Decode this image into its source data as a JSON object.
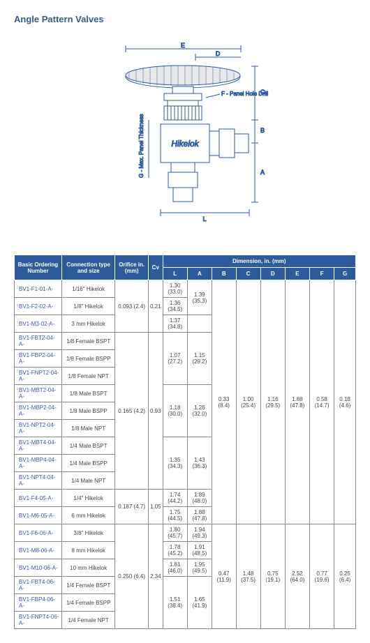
{
  "page_title": "Angle Pattern Valves",
  "diagram": {
    "brand_label": "Hikelok",
    "label_E": "E",
    "label_D": "D",
    "label_C": "C",
    "label_B": "B",
    "label_A": "A",
    "label_L": "L",
    "label_F": "F - Panel Hole Drill",
    "label_G": "G - Max. Panel Thickness",
    "stroke_color": "#2e5a9e",
    "fill_color": "#ffffff"
  },
  "table": {
    "header_bg": "#2e5a9e",
    "header_fg": "#ffffff",
    "headers": {
      "basic_ordering": "Basic Ordering Number",
      "connection": "Connection type and size",
      "orifice": "Orifice in. (mm)",
      "cv": "Cv",
      "dimension": "Dimension, in. (mm)",
      "L": "L",
      "A": "A",
      "B": "B",
      "C": "C",
      "D": "D",
      "E": "E",
      "F": "F",
      "G": "G"
    },
    "rows": [
      {
        "order": "BV1-F1-01-A-",
        "conn": "1/16\" Hikelok",
        "orifice": "0.093 (2.4)",
        "cv": "0.21",
        "L": "1.30 (33.0)",
        "A": "1.39 (35.3)"
      },
      {
        "order": "BV1-F2-02-A-",
        "conn": "1/8\" Hikelok",
        "L": "1.36 (34.5)"
      },
      {
        "order": "BV1-M3-02-A-",
        "conn": "3 mm Hikelok",
        "L": "1.37 (34.8)"
      },
      {
        "order": "BV1-FBT2-04-A-",
        "conn": "1/8  Female BSPT"
      },
      {
        "order": "BV1-FBP2-04-A-",
        "conn": "1/8  Female BSPP",
        "L": "1.07 (27.2)",
        "A": "1.15 (29.2)"
      },
      {
        "order": "BV1-FNPT2-04-A-",
        "conn": "1/8  Female NPT"
      },
      {
        "order": "BV1-MBT2-04-A-",
        "conn": "1/8  Male BSPT",
        "orifice": "0.165 (4.2)",
        "cv": "0.93"
      },
      {
        "order": "BV1-MBP2-04-A-",
        "conn": "1/8  Male BSPP",
        "L": "1.18 (30.0)",
        "A": "1.26 (32.0)"
      },
      {
        "order": "BV1-NPT2-04-A-",
        "conn": "1/8  Male NPT"
      },
      {
        "order": "BV1-MBT4-04-A-",
        "conn": "1/4 Male BSPT"
      },
      {
        "order": "BV1-MBP4-04-A-",
        "conn": "1/4 Male BSPP",
        "L": "1.35 (34.3)",
        "A": "1.43 (36.3)"
      },
      {
        "order": "BV1-NPT4-04-A-",
        "conn": "1/4 Male NPT"
      },
      {
        "order": "BV1-F4-05-A-",
        "conn": "1/4\" Hikelok",
        "orifice": "0.187 (4.7)",
        "cv": "1.05",
        "L": "1.74 (44.2)",
        "A": "1.89 (48.0)"
      },
      {
        "order": "BV1-M6-05-A-",
        "conn": "6 mm Hikelok",
        "L": "1.75 (44.5)",
        "A": "1.88 (47.8)"
      },
      {
        "order": "BV1-F6-06-A-",
        "conn": "3/8\" Hikelok",
        "L": "1.80 (45.7)",
        "A": "1.94 (49.3)"
      },
      {
        "order": "BV1-M8-06-A-",
        "conn": "8 mm Hikelok",
        "orifice": "0.250 (6.4)",
        "cv": "2.34",
        "L": "1.78 (45.2)",
        "A": "1.91 (48.5)"
      },
      {
        "order": "BV1-M10-06-A-",
        "conn": "10 mm Hikelok",
        "L": "1.81 (46.0)",
        "A": "1.95 (49.5)"
      },
      {
        "order": "BV1-FBT4-06-A-",
        "conn": "1/4  Female BSPT"
      },
      {
        "order": "BV1-FBP4-06-A-",
        "conn": "1/4  Female BSPP",
        "L": "1.51 (38.4)",
        "A": "1.65 (41.9)"
      },
      {
        "order": "BV1-FNPT4-06-A-",
        "conn": "1/4  Female NPT"
      }
    ],
    "block1": {
      "B": "0.33 (8.4)",
      "C": "1.00 (25.4)",
      "D": "1.16 (29.5)",
      "E": "1.88 (47.8)",
      "F": "0.58 (14.7)",
      "G": "0.18 (4.6)"
    },
    "block2": {
      "B": "0.47 (11.9)",
      "C": "1.48 (37.5)",
      "D": "0.75 (19.1)",
      "E": "2.52 (64.0)",
      "F": "0.77 (19.6)",
      "G": "0.25 (6.4)"
    }
  }
}
